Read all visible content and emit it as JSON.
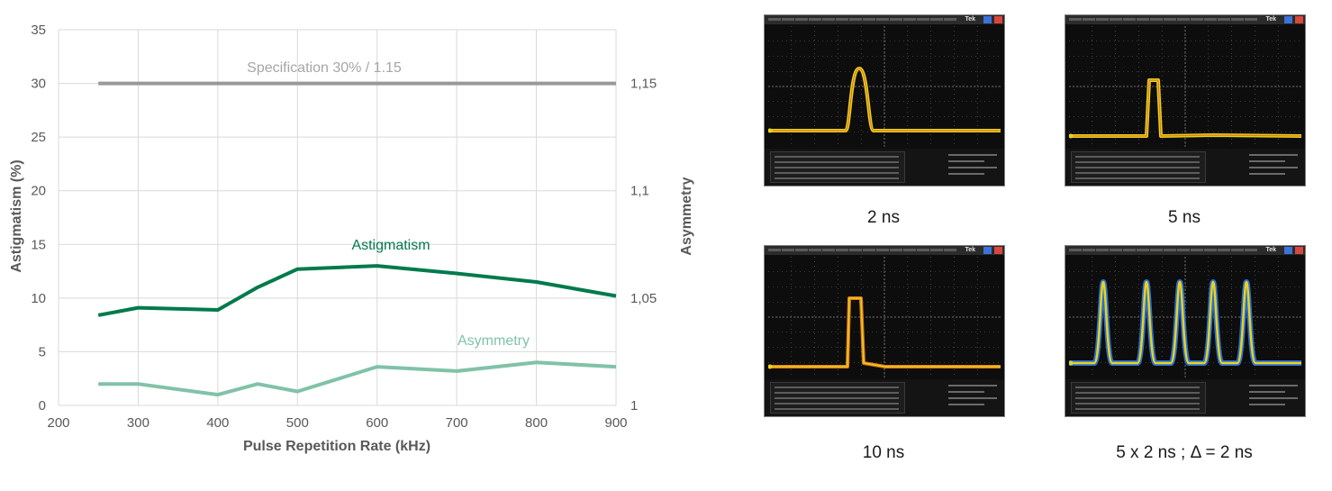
{
  "chart_data": {
    "type": "line",
    "xlabel": "Pulse Repetition Rate (kHz)",
    "ylabel_left": "Astigmatism (%)",
    "ylabel_right": "Asymmetry",
    "xlim": [
      200,
      900
    ],
    "x_ticks": [
      "200",
      "300",
      "400",
      "500",
      "600",
      "700",
      "800",
      "900"
    ],
    "ylim_left": [
      0,
      35
    ],
    "y_ticks_left": [
      "0",
      "5",
      "10",
      "15",
      "20",
      "25",
      "30",
      "35"
    ],
    "ylim_right": [
      1.0,
      1.175
    ],
    "y_ticks_right": [
      {
        "label": "1",
        "value": 1.0
      },
      {
        "label": "1,05",
        "value": 1.05
      },
      {
        "label": "1,1",
        "value": 1.1
      },
      {
        "label": "1,15",
        "value": 1.15
      }
    ],
    "grid": true,
    "series": [
      {
        "name": "Specification 30% / 1.15",
        "color": "#999999",
        "axis": "left",
        "x": [
          250,
          900
        ],
        "y": [
          30,
          30
        ]
      },
      {
        "name": "Astigmatism",
        "color": "#007a4c",
        "axis": "left",
        "x": [
          250,
          300,
          400,
          450,
          500,
          600,
          700,
          800,
          900
        ],
        "y": [
          8.4,
          9.1,
          8.9,
          11.0,
          12.7,
          13.0,
          12.3,
          11.5,
          10.2
        ]
      },
      {
        "name": "Asymmetry",
        "color": "#80c2a8",
        "axis": "right",
        "x": [
          250,
          300,
          400,
          450,
          500,
          600,
          700,
          800,
          900
        ],
        "y": [
          1.01,
          1.01,
          1.005,
          1.01,
          1.0065,
          1.018,
          1.016,
          1.02,
          1.018
        ]
      }
    ]
  },
  "scopes": [
    {
      "caption": "2 ns",
      "logo": "Tek"
    },
    {
      "caption": "5 ns",
      "logo": "Tek"
    },
    {
      "caption": "10 ns",
      "logo": "Tek"
    },
    {
      "caption": "5 x 2 ns ; Δ = 2 ns",
      "logo": "Tek"
    }
  ],
  "colors": {
    "trace_yellow": "#e8d21c",
    "trace_orange": "#e07a1c",
    "trace_blue": "#2a6fd6",
    "grid_dots": "#6b6b6b"
  }
}
